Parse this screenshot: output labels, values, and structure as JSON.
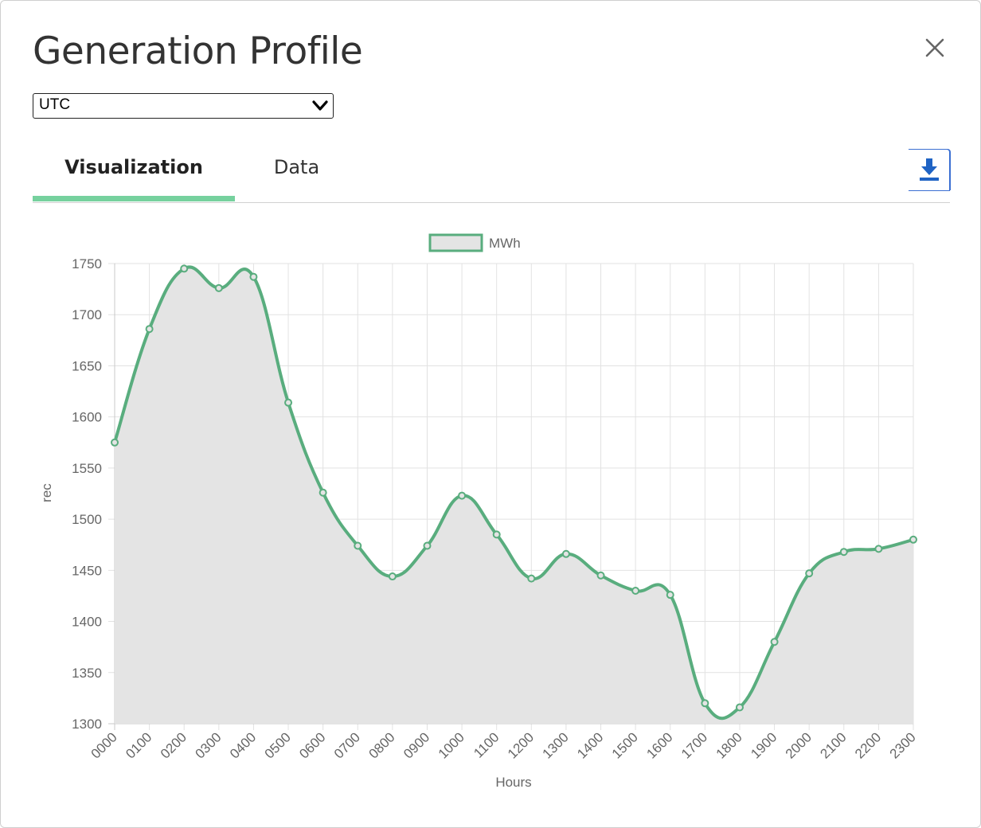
{
  "modal": {
    "title": "Generation Profile",
    "close_icon": "close-icon"
  },
  "timezone": {
    "selected": "UTC"
  },
  "tabs": [
    {
      "label": "Visualization",
      "active": true
    },
    {
      "label": "Data",
      "active": false
    }
  ],
  "download_icon": "download-icon",
  "colors": {
    "accent_tab": "#76d19e",
    "series_line": "#59ad7e",
    "area_fill": "#e4e4e4",
    "download_icon": "#1f63c4"
  },
  "chart_data": {
    "type": "area",
    "x": [
      "0000",
      "0100",
      "0200",
      "0300",
      "0400",
      "0500",
      "0600",
      "0700",
      "0800",
      "0900",
      "1000",
      "1100",
      "1200",
      "1300",
      "1400",
      "1500",
      "1600",
      "1700",
      "1800",
      "1900",
      "2000",
      "2100",
      "2200",
      "2300"
    ],
    "series": [
      {
        "name": "MWh",
        "values": [
          1575,
          1686,
          1745,
          1726,
          1737,
          1614,
          1526,
          1474,
          1444,
          1474,
          1523,
          1485,
          1442,
          1466,
          1445,
          1430,
          1426,
          1320,
          1316,
          1380,
          1447,
          1468,
          1471,
          1480
        ]
      }
    ],
    "xlabel": "Hours",
    "ylabel": "rec",
    "ylim": [
      1300,
      1750
    ],
    "yticks": [
      1300,
      1350,
      1400,
      1450,
      1500,
      1550,
      1600,
      1650,
      1700,
      1750
    ],
    "grid": true,
    "legend": "top-center"
  }
}
